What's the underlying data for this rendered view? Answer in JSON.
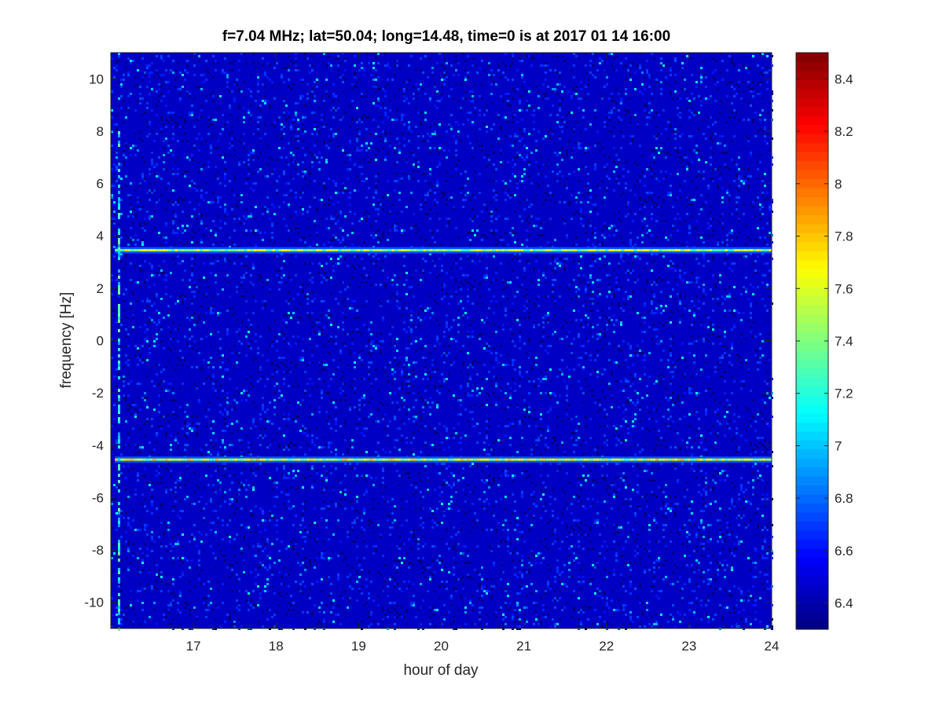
{
  "chart_data": {
    "type": "heatmap",
    "title": "f=7.04 MHz;  lat=50.04; long=14.48, time=0 is at 2017 01 14 16:00",
    "xlabel": "hour of day",
    "ylabel": "frequency [Hz]",
    "xlim": [
      16,
      24
    ],
    "ylim": [
      -11,
      11
    ],
    "x_ticks": [
      17,
      18,
      19,
      20,
      21,
      22,
      23,
      24
    ],
    "x_tick_labels": [
      "17",
      "18",
      "19",
      "20",
      "21",
      "22",
      "23",
      "24"
    ],
    "y_ticks": [
      10,
      8,
      6,
      4,
      2,
      0,
      -2,
      -4,
      -6,
      -8,
      -10
    ],
    "y_tick_labels": [
      "10",
      "8",
      "6",
      "4",
      "2",
      "0",
      "-2",
      "-4",
      "-6",
      "-8",
      "-10"
    ],
    "colorbar": {
      "colormap": "jet",
      "clim": [
        6.3,
        8.5
      ],
      "ticks": [
        8.4,
        8.2,
        8,
        7.8,
        7.6,
        7.4,
        7.2,
        7,
        6.8,
        6.6,
        6.4
      ],
      "tick_labels": [
        "8.4",
        "8.2",
        "8",
        "7.8",
        "7.6",
        "7.4",
        "7.2",
        "7",
        "6.8",
        "6.6",
        "6.4"
      ]
    },
    "background_level": 6.45,
    "features": [
      {
        "kind": "horizontal_line",
        "y": 3.45,
        "x_range": [
          16.05,
          24
        ],
        "level": 7.6
      },
      {
        "kind": "horizontal_line",
        "y": -4.55,
        "x_range": [
          16.05,
          24
        ],
        "level": 7.7
      },
      {
        "kind": "vertical_streak",
        "x": 16.1,
        "y_range": [
          -11,
          8
        ],
        "level": 7.2
      }
    ],
    "grid": false
  }
}
